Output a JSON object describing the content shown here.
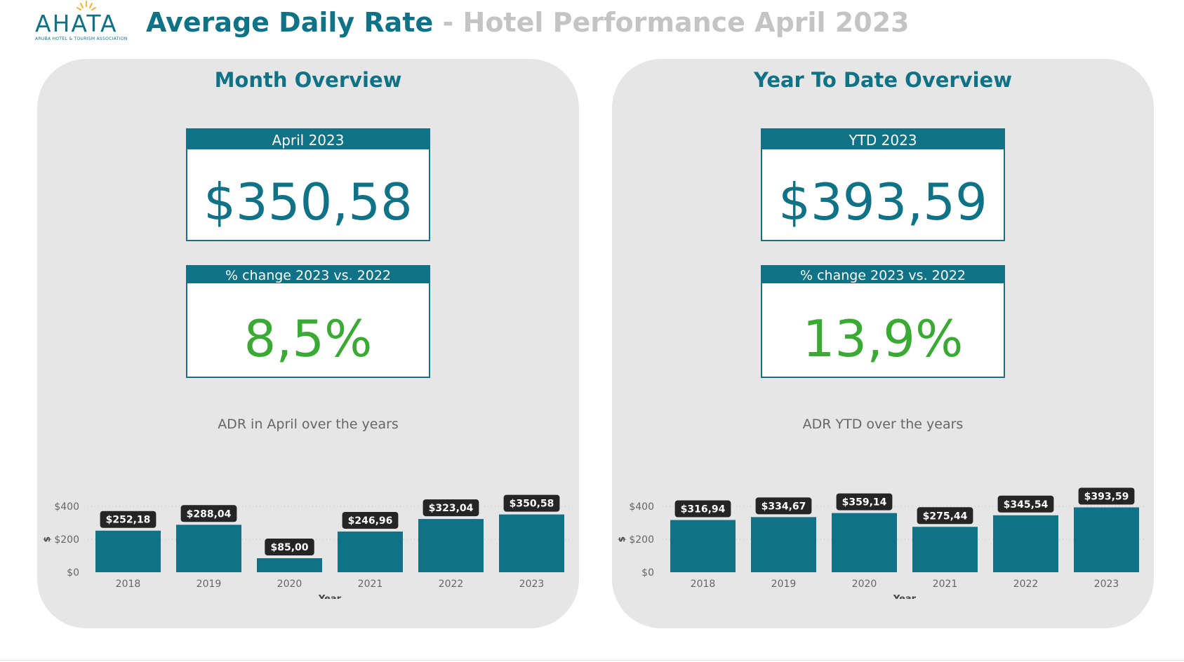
{
  "header": {
    "logo_text": "AHATA",
    "logo_subtitle": "ARUBA HOTEL & TOURISM ASSOCIATION",
    "title_main": "Average Daily Rate",
    "title_sep": "-",
    "title_sub": "Hotel Performance April 2023"
  },
  "colors": {
    "accent": "#0f7286",
    "positive": "#3aaa35",
    "panel_bg": "#e6e6e6",
    "label_bg": "#252525",
    "muted": "#c4c4c4"
  },
  "month": {
    "panel_title": "Month Overview",
    "kpi_label": "April 2023",
    "kpi_value": "$350,58",
    "change_label": "% change 2023 vs. 2022",
    "change_value": "8,5%"
  },
  "ytd": {
    "panel_title": "Year To Date Overview",
    "kpi_label": "YTD 2023",
    "kpi_value": "$393,59",
    "change_label": "% change 2023 vs. 2022",
    "change_value": "13,9%"
  },
  "chart_data": [
    {
      "type": "bar",
      "title": "ADR in April over the years",
      "xlabel": "Year",
      "ylabel": "$",
      "categories": [
        "2018",
        "2019",
        "2020",
        "2021",
        "2022",
        "2023"
      ],
      "values": [
        252.18,
        288.04,
        85.0,
        246.96,
        323.04,
        350.58
      ],
      "data_labels": [
        "$252,18",
        "$288,04",
        "$85,00",
        "$246,96",
        "$323,04",
        "$350,58"
      ],
      "ylim": [
        0,
        400
      ],
      "yticks": [
        0,
        200,
        400
      ],
      "ytick_labels": [
        "$0",
        "$200",
        "$400"
      ],
      "grid": true
    },
    {
      "type": "bar",
      "title": "ADR YTD over the years",
      "xlabel": "Year",
      "ylabel": "$",
      "categories": [
        "2018",
        "2019",
        "2020",
        "2021",
        "2022",
        "2023"
      ],
      "values": [
        316.94,
        334.67,
        359.14,
        275.44,
        345.54,
        393.59
      ],
      "data_labels": [
        "$316,94",
        "$334,67",
        "$359,14",
        "$275,44",
        "$345,54",
        "$393,59"
      ],
      "ylim": [
        0,
        400
      ],
      "yticks": [
        0,
        200,
        400
      ],
      "ytick_labels": [
        "$0",
        "$200",
        "$400"
      ],
      "grid": true
    }
  ]
}
